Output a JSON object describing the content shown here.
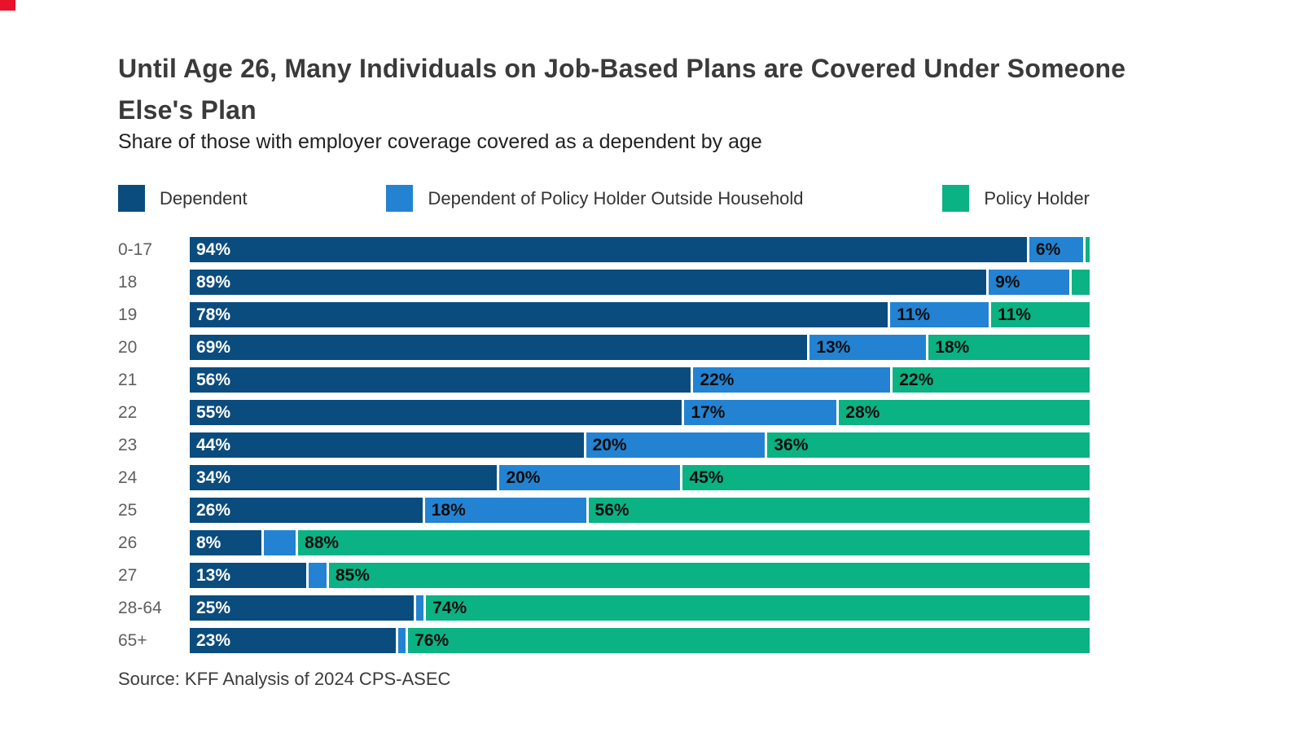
{
  "decor": {
    "corner_marker_color": "#e8132b"
  },
  "chart_data": {
    "type": "bar",
    "orientation": "horizontal-stacked",
    "title": "Until Age 26, Many Individuals on Job-Based Plans are Covered Under Someone Else's Plan",
    "subtitle": "Share of those with employer coverage covered as a dependent by age",
    "source": "Source: KFF Analysis of 2024 CPS-ASEC",
    "xlim": [
      0,
      100
    ],
    "grid": false,
    "legend_position": "top",
    "value_unit": "%",
    "categories": [
      "0-17",
      "18",
      "19",
      "20",
      "21",
      "22",
      "23",
      "24",
      "25",
      "26",
      "27",
      "28-64",
      "65+"
    ],
    "series": [
      {
        "name": "Dependent",
        "color": "#0b4c7e",
        "label_style": "light",
        "values": [
          94,
          89,
          78,
          69,
          56,
          55,
          44,
          34,
          26,
          8,
          13,
          25,
          23
        ],
        "labels": [
          "94%",
          "89%",
          "78%",
          "69%",
          "56%",
          "55%",
          "44%",
          "34%",
          "26%",
          "8%",
          "13%",
          "25%",
          "23%"
        ]
      },
      {
        "name": "Dependent of Policy Holder Outside Household",
        "color": "#2383d2",
        "label_style": "dark",
        "values": [
          6,
          9,
          11,
          13,
          22,
          17,
          20,
          20,
          18,
          3.5,
          2,
          0.8,
          0.8
        ],
        "labels": [
          "6%",
          "9%",
          "11%",
          "13%",
          "22%",
          "17%",
          "20%",
          "20%",
          "18%",
          "",
          "",
          "",
          ""
        ]
      },
      {
        "name": "Policy Holder",
        "color": "#0bb283",
        "label_style": "dark",
        "values": [
          0.5,
          2,
          11,
          18,
          22,
          28,
          36,
          45,
          56,
          88,
          85,
          74,
          76
        ],
        "labels": [
          "",
          "",
          "11%",
          "18%",
          "22%",
          "28%",
          "36%",
          "45%",
          "56%",
          "88%",
          "85%",
          "74%",
          "76%"
        ]
      }
    ]
  }
}
